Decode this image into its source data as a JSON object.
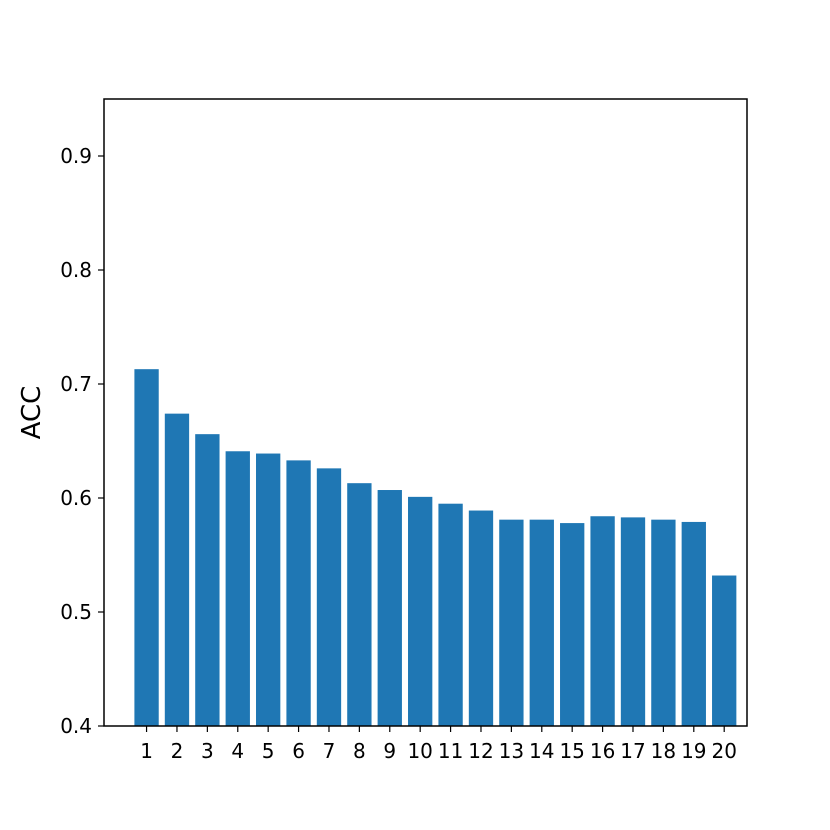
{
  "chart_data": {
    "type": "bar",
    "categories": [
      "1",
      "2",
      "3",
      "4",
      "5",
      "6",
      "7",
      "8",
      "9",
      "10",
      "11",
      "12",
      "13",
      "14",
      "15",
      "16",
      "17",
      "18",
      "19",
      "20"
    ],
    "values": [
      0.713,
      0.674,
      0.656,
      0.641,
      0.639,
      0.633,
      0.626,
      0.613,
      0.607,
      0.601,
      0.595,
      0.589,
      0.581,
      0.581,
      0.578,
      0.584,
      0.583,
      0.581,
      0.579,
      0.532
    ],
    "title": "",
    "xlabel": "",
    "ylabel": "ACC",
    "ylim": [
      0.4,
      0.95
    ],
    "yticks": [
      "0.4",
      "0.5",
      "0.6",
      "0.7",
      "0.8",
      "0.9"
    ],
    "grid": false,
    "bar_color": "#1f77b4"
  }
}
